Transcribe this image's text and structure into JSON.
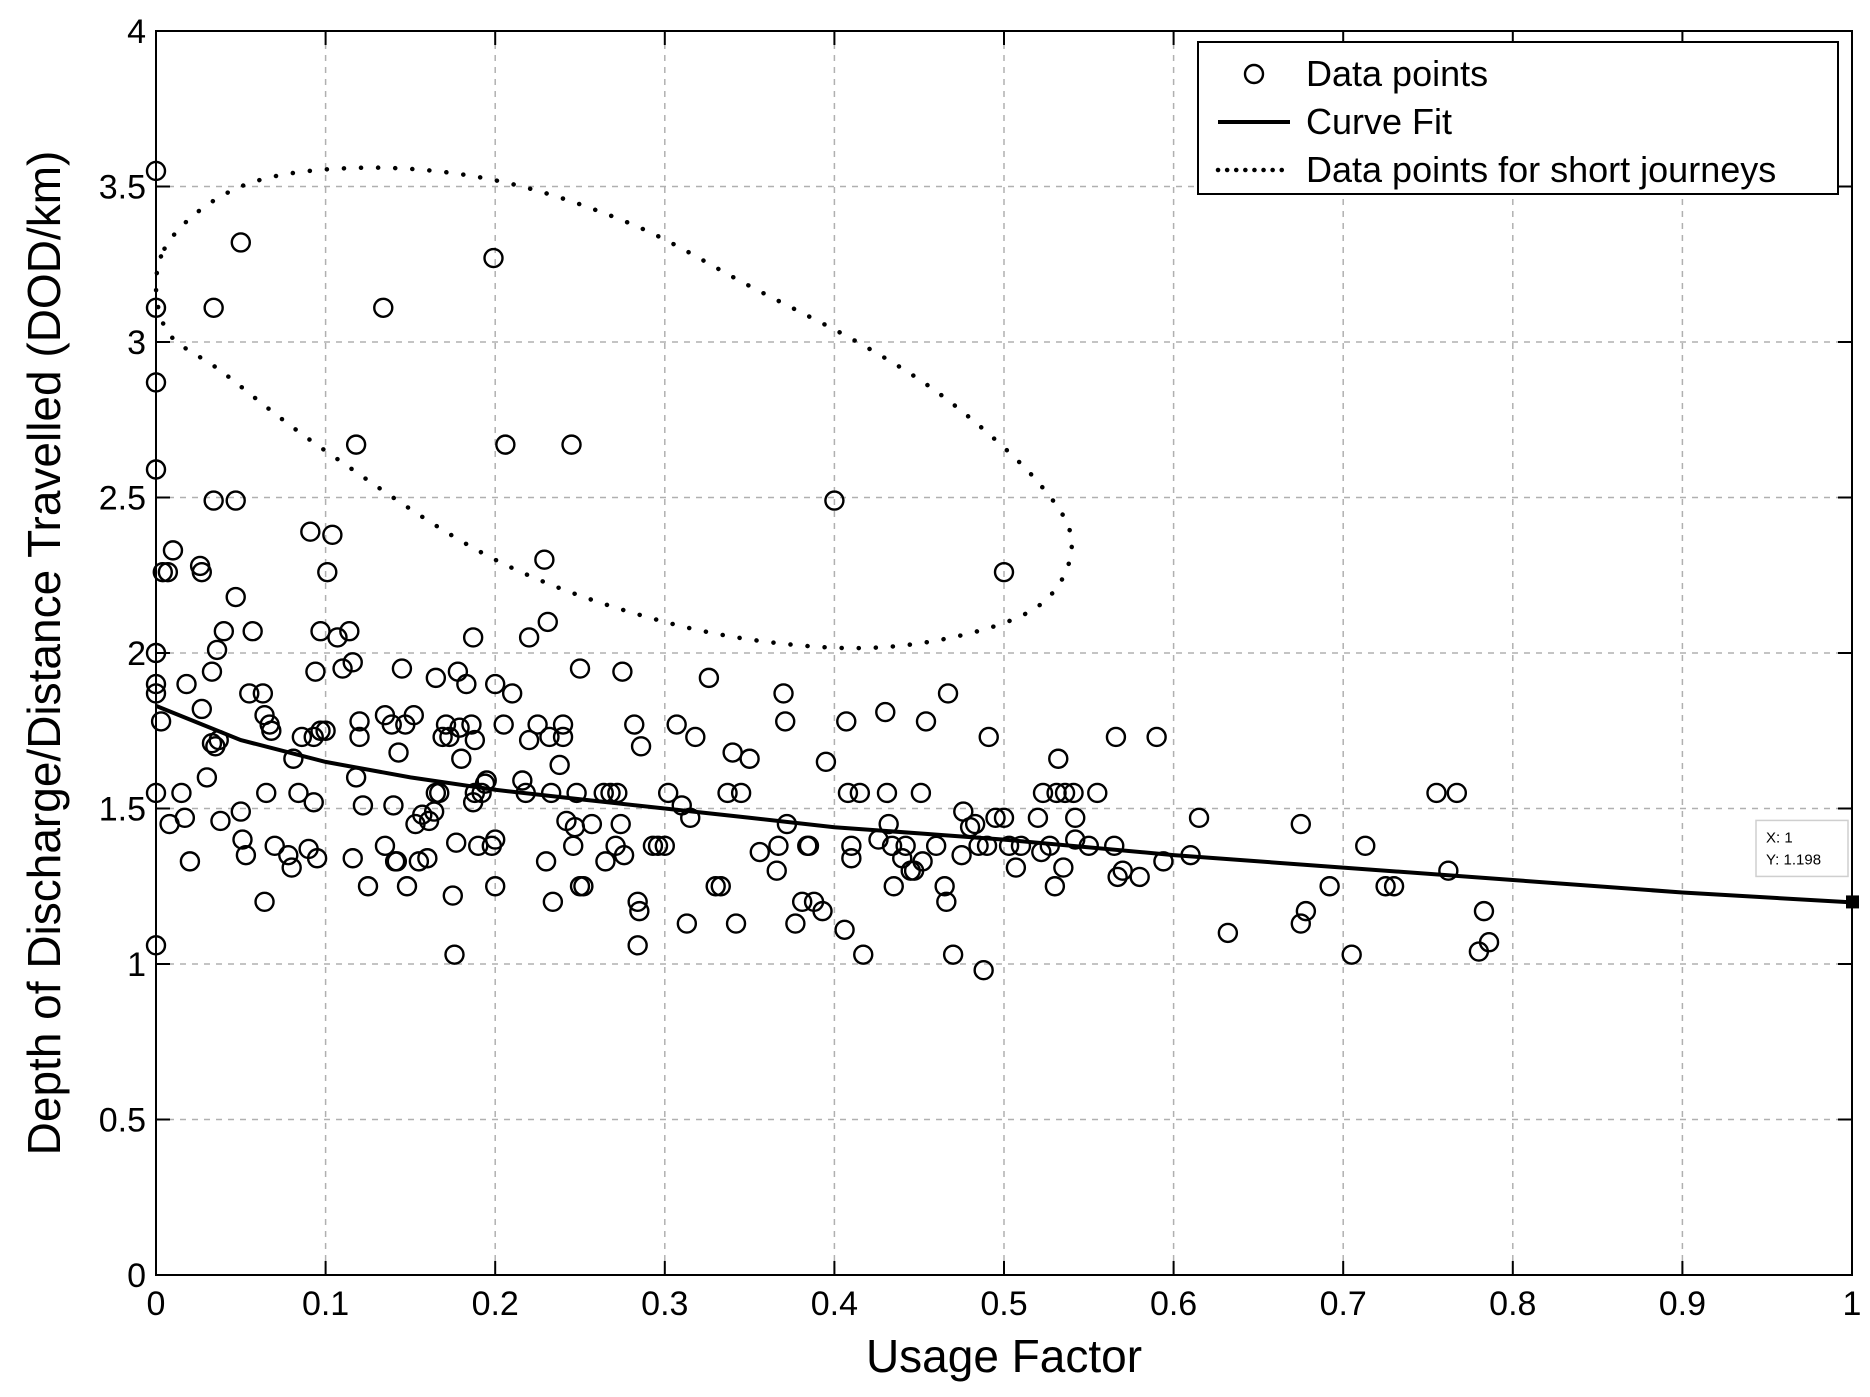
{
  "chart_data": {
    "type": "scatter",
    "xlabel": "Usage Factor",
    "ylabel": "Depth of Discharge/Distance Travelled (DOD/km)",
    "xlim": [
      0,
      1
    ],
    "ylim": [
      0,
      4
    ],
    "xticks": [
      0,
      0.1,
      0.2,
      0.3,
      0.4,
      0.5,
      0.6,
      0.7,
      0.8,
      0.9,
      1
    ],
    "yticks": [
      0,
      0.5,
      1,
      1.5,
      2,
      2.5,
      3,
      3.5,
      4
    ],
    "xtick_labels": [
      "0",
      "0.1",
      "0.2",
      "0.3",
      "0.4",
      "0.5",
      "0.6",
      "0.7",
      "0.8",
      "0.9",
      "1"
    ],
    "ytick_labels": [
      "0",
      "0.5",
      "1",
      "1.5",
      "2",
      "2.5",
      "3",
      "3.5",
      "4"
    ],
    "grid": true,
    "legend_position": "top-right",
    "legend": [
      {
        "label": "Data points",
        "style": "marker-circle"
      },
      {
        "label": "Curve Fit",
        "style": "solid-line"
      },
      {
        "label": "Data points for short journeys",
        "style": "dotted-line"
      }
    ],
    "series": [
      {
        "name": "Data points",
        "kind": "scatter",
        "marker": "open-circle",
        "points": [
          [
            0.0,
            3.55
          ],
          [
            0.0,
            3.11
          ],
          [
            0.0,
            2.87
          ],
          [
            0.0,
            2.59
          ],
          [
            0.0,
            2.0
          ],
          [
            0.0,
            1.9
          ],
          [
            0.0,
            1.87
          ],
          [
            0.0,
            1.55
          ],
          [
            0.0,
            1.06
          ],
          [
            0.003,
            1.78
          ],
          [
            0.004,
            2.26
          ],
          [
            0.007,
            2.26
          ],
          [
            0.008,
            1.45
          ],
          [
            0.01,
            2.33
          ],
          [
            0.015,
            1.55
          ],
          [
            0.017,
            1.47
          ],
          [
            0.018,
            1.9
          ],
          [
            0.02,
            1.33
          ],
          [
            0.026,
            2.28
          ],
          [
            0.027,
            2.26
          ],
          [
            0.027,
            1.82
          ],
          [
            0.03,
            1.6
          ],
          [
            0.033,
            1.94
          ],
          [
            0.033,
            1.71
          ],
          [
            0.034,
            3.11
          ],
          [
            0.034,
            2.49
          ],
          [
            0.035,
            1.7
          ],
          [
            0.036,
            2.01
          ],
          [
            0.037,
            1.72
          ],
          [
            0.038,
            1.46
          ],
          [
            0.04,
            2.07
          ],
          [
            0.047,
            2.49
          ],
          [
            0.047,
            2.18
          ],
          [
            0.05,
            3.32
          ],
          [
            0.05,
            1.49
          ],
          [
            0.051,
            1.4
          ],
          [
            0.053,
            1.35
          ],
          [
            0.055,
            1.87
          ],
          [
            0.057,
            2.07
          ],
          [
            0.063,
            1.87
          ],
          [
            0.064,
            1.8
          ],
          [
            0.064,
            1.2
          ],
          [
            0.065,
            1.55
          ],
          [
            0.067,
            1.77
          ],
          [
            0.068,
            1.75
          ],
          [
            0.07,
            1.38
          ],
          [
            0.078,
            1.35
          ],
          [
            0.08,
            1.31
          ],
          [
            0.081,
            1.66
          ],
          [
            0.084,
            1.55
          ],
          [
            0.086,
            1.73
          ],
          [
            0.09,
            1.37
          ],
          [
            0.091,
            2.39
          ],
          [
            0.093,
            1.73
          ],
          [
            0.093,
            1.52
          ],
          [
            0.094,
            1.94
          ],
          [
            0.095,
            1.34
          ],
          [
            0.097,
            1.75
          ],
          [
            0.097,
            2.07
          ],
          [
            0.1,
            1.75
          ],
          [
            0.101,
            2.26
          ],
          [
            0.104,
            2.38
          ],
          [
            0.107,
            2.05
          ],
          [
            0.11,
            1.95
          ],
          [
            0.114,
            2.07
          ],
          [
            0.116,
            1.97
          ],
          [
            0.116,
            1.34
          ],
          [
            0.118,
            1.6
          ],
          [
            0.118,
            2.67
          ],
          [
            0.12,
            1.73
          ],
          [
            0.12,
            1.78
          ],
          [
            0.122,
            1.51
          ],
          [
            0.125,
            1.25
          ],
          [
            0.134,
            3.11
          ],
          [
            0.135,
            1.8
          ],
          [
            0.135,
            1.38
          ],
          [
            0.139,
            1.77
          ],
          [
            0.14,
            1.51
          ],
          [
            0.141,
            1.33
          ],
          [
            0.142,
            1.33
          ],
          [
            0.143,
            1.68
          ],
          [
            0.145,
            1.95
          ],
          [
            0.147,
            1.77
          ],
          [
            0.148,
            1.25
          ],
          [
            0.152,
            1.8
          ],
          [
            0.153,
            1.45
          ],
          [
            0.155,
            1.33
          ],
          [
            0.157,
            1.48
          ],
          [
            0.16,
            1.34
          ],
          [
            0.161,
            1.46
          ],
          [
            0.164,
            1.49
          ],
          [
            0.165,
            1.55
          ],
          [
            0.165,
            1.92
          ],
          [
            0.167,
            1.55
          ],
          [
            0.169,
            1.73
          ],
          [
            0.171,
            1.77
          ],
          [
            0.173,
            1.73
          ],
          [
            0.175,
            1.22
          ],
          [
            0.176,
            1.03
          ],
          [
            0.177,
            1.39
          ],
          [
            0.178,
            1.94
          ],
          [
            0.179,
            1.76
          ],
          [
            0.18,
            1.66
          ],
          [
            0.183,
            1.9
          ],
          [
            0.186,
            1.77
          ],
          [
            0.187,
            1.52
          ],
          [
            0.187,
            2.05
          ],
          [
            0.188,
            1.55
          ],
          [
            0.188,
            1.72
          ],
          [
            0.19,
            1.38
          ],
          [
            0.192,
            1.55
          ],
          [
            0.194,
            1.58
          ],
          [
            0.195,
            1.59
          ],
          [
            0.198,
            1.38
          ],
          [
            0.199,
            3.27
          ],
          [
            0.2,
            1.4
          ],
          [
            0.2,
            1.9
          ],
          [
            0.2,
            1.25
          ],
          [
            0.205,
            1.77
          ],
          [
            0.206,
            2.67
          ],
          [
            0.21,
            1.87
          ],
          [
            0.216,
            1.59
          ],
          [
            0.218,
            1.55
          ],
          [
            0.22,
            1.72
          ],
          [
            0.22,
            2.05
          ],
          [
            0.225,
            1.77
          ],
          [
            0.229,
            2.3
          ],
          [
            0.23,
            1.33
          ],
          [
            0.231,
            2.1
          ],
          [
            0.232,
            1.73
          ],
          [
            0.233,
            1.55
          ],
          [
            0.234,
            1.2
          ],
          [
            0.238,
            1.64
          ],
          [
            0.24,
            1.77
          ],
          [
            0.24,
            1.73
          ],
          [
            0.242,
            1.46
          ],
          [
            0.245,
            2.67
          ],
          [
            0.246,
            1.38
          ],
          [
            0.247,
            1.44
          ],
          [
            0.248,
            1.55
          ],
          [
            0.25,
            1.95
          ],
          [
            0.25,
            1.25
          ],
          [
            0.252,
            1.25
          ],
          [
            0.257,
            1.45
          ],
          [
            0.264,
            1.55
          ],
          [
            0.265,
            1.33
          ],
          [
            0.268,
            1.55
          ],
          [
            0.271,
            1.38
          ],
          [
            0.272,
            1.55
          ],
          [
            0.274,
            1.45
          ],
          [
            0.275,
            1.94
          ],
          [
            0.276,
            1.35
          ],
          [
            0.282,
            1.77
          ],
          [
            0.284,
            1.2
          ],
          [
            0.284,
            1.06
          ],
          [
            0.285,
            1.17
          ],
          [
            0.286,
            1.7
          ],
          [
            0.293,
            1.38
          ],
          [
            0.296,
            1.38
          ],
          [
            0.3,
            1.38
          ],
          [
            0.302,
            1.55
          ],
          [
            0.307,
            1.77
          ],
          [
            0.31,
            1.51
          ],
          [
            0.313,
            1.13
          ],
          [
            0.315,
            1.47
          ],
          [
            0.318,
            1.73
          ],
          [
            0.326,
            1.92
          ],
          [
            0.33,
            1.25
          ],
          [
            0.333,
            1.25
          ],
          [
            0.337,
            1.55
          ],
          [
            0.34,
            1.68
          ],
          [
            0.342,
            1.13
          ],
          [
            0.345,
            1.55
          ],
          [
            0.35,
            1.66
          ],
          [
            0.356,
            1.36
          ],
          [
            0.366,
            1.3
          ],
          [
            0.367,
            1.38
          ],
          [
            0.37,
            1.87
          ],
          [
            0.371,
            1.78
          ],
          [
            0.372,
            1.45
          ],
          [
            0.377,
            1.13
          ],
          [
            0.381,
            1.2
          ],
          [
            0.384,
            1.38
          ],
          [
            0.385,
            1.38
          ],
          [
            0.388,
            1.2
          ],
          [
            0.393,
            1.17
          ],
          [
            0.395,
            1.65
          ],
          [
            0.4,
            2.49
          ],
          [
            0.406,
            1.11
          ],
          [
            0.407,
            1.78
          ],
          [
            0.408,
            1.55
          ],
          [
            0.41,
            1.34
          ],
          [
            0.41,
            1.38
          ],
          [
            0.415,
            1.55
          ],
          [
            0.417,
            1.03
          ],
          [
            0.426,
            1.4
          ],
          [
            0.43,
            1.81
          ],
          [
            0.431,
            1.55
          ],
          [
            0.432,
            1.45
          ],
          [
            0.434,
            1.38
          ],
          [
            0.435,
            1.25
          ],
          [
            0.44,
            1.34
          ],
          [
            0.442,
            1.38
          ],
          [
            0.445,
            1.3
          ],
          [
            0.447,
            1.3
          ],
          [
            0.451,
            1.55
          ],
          [
            0.452,
            1.33
          ],
          [
            0.454,
            1.78
          ],
          [
            0.46,
            1.38
          ],
          [
            0.465,
            1.25
          ],
          [
            0.466,
            1.2
          ],
          [
            0.467,
            1.87
          ],
          [
            0.47,
            1.03
          ],
          [
            0.475,
            1.35
          ],
          [
            0.476,
            1.49
          ],
          [
            0.48,
            1.44
          ],
          [
            0.483,
            1.45
          ],
          [
            0.485,
            1.38
          ],
          [
            0.488,
            0.98
          ],
          [
            0.49,
            1.38
          ],
          [
            0.491,
            1.73
          ],
          [
            0.495,
            1.47
          ],
          [
            0.5,
            1.47
          ],
          [
            0.5,
            2.26
          ],
          [
            0.503,
            1.38
          ],
          [
            0.507,
            1.31
          ],
          [
            0.51,
            1.38
          ],
          [
            0.52,
            1.47
          ],
          [
            0.522,
            1.36
          ],
          [
            0.523,
            1.55
          ],
          [
            0.527,
            1.38
          ],
          [
            0.53,
            1.25
          ],
          [
            0.531,
            1.55
          ],
          [
            0.532,
            1.66
          ],
          [
            0.535,
            1.31
          ],
          [
            0.536,
            1.55
          ],
          [
            0.541,
            1.55
          ],
          [
            0.542,
            1.47
          ],
          [
            0.542,
            1.4
          ],
          [
            0.55,
            1.38
          ],
          [
            0.555,
            1.55
          ],
          [
            0.565,
            1.38
          ],
          [
            0.566,
            1.73
          ],
          [
            0.567,
            1.28
          ],
          [
            0.57,
            1.3
          ],
          [
            0.58,
            1.28
          ],
          [
            0.59,
            1.73
          ],
          [
            0.594,
            1.33
          ],
          [
            0.61,
            1.35
          ],
          [
            0.615,
            1.47
          ],
          [
            0.632,
            1.1
          ],
          [
            0.675,
            1.45
          ],
          [
            0.675,
            1.13
          ],
          [
            0.678,
            1.17
          ],
          [
            0.692,
            1.25
          ],
          [
            0.705,
            1.03
          ],
          [
            0.713,
            1.38
          ],
          [
            0.725,
            1.25
          ],
          [
            0.73,
            1.25
          ],
          [
            0.755,
            1.55
          ],
          [
            0.762,
            1.3
          ],
          [
            0.767,
            1.55
          ],
          [
            0.78,
            1.04
          ],
          [
            0.783,
            1.17
          ],
          [
            0.786,
            1.07
          ]
        ]
      },
      {
        "name": "Curve Fit",
        "kind": "line",
        "style": "solid",
        "points": [
          [
            0,
            1.83
          ],
          [
            0.05,
            1.72
          ],
          [
            0.1,
            1.65
          ],
          [
            0.15,
            1.6
          ],
          [
            0.2,
            1.56
          ],
          [
            0.25,
            1.53
          ],
          [
            0.3,
            1.5
          ],
          [
            0.35,
            1.47
          ],
          [
            0.4,
            1.44
          ],
          [
            0.45,
            1.42
          ],
          [
            0.5,
            1.4
          ],
          [
            0.6,
            1.35
          ],
          [
            0.7,
            1.31
          ],
          [
            0.8,
            1.27
          ],
          [
            0.9,
            1.23
          ],
          [
            1.0,
            1.198
          ]
        ]
      },
      {
        "name": "Data points for short journeys",
        "kind": "closed-curve",
        "style": "dotted",
        "points": [
          [
            0.005,
            3.3
          ],
          [
            0.05,
            3.5
          ],
          [
            0.12,
            3.56
          ],
          [
            0.2,
            3.52
          ],
          [
            0.28,
            3.38
          ],
          [
            0.35,
            3.18
          ],
          [
            0.42,
            2.98
          ],
          [
            0.47,
            2.8
          ],
          [
            0.52,
            2.55
          ],
          [
            0.54,
            2.35
          ],
          [
            0.52,
            2.15
          ],
          [
            0.46,
            2.04
          ],
          [
            0.39,
            2.02
          ],
          [
            0.3,
            2.1
          ],
          [
            0.2,
            2.3
          ],
          [
            0.1,
            2.65
          ],
          [
            0.04,
            2.9
          ],
          [
            0.005,
            3.05
          ]
        ]
      }
    ],
    "annotations": [
      {
        "kind": "datatip",
        "x": 1,
        "y": 1.198,
        "lines": [
          "X: 1",
          "Y: 1.198"
        ]
      }
    ]
  }
}
